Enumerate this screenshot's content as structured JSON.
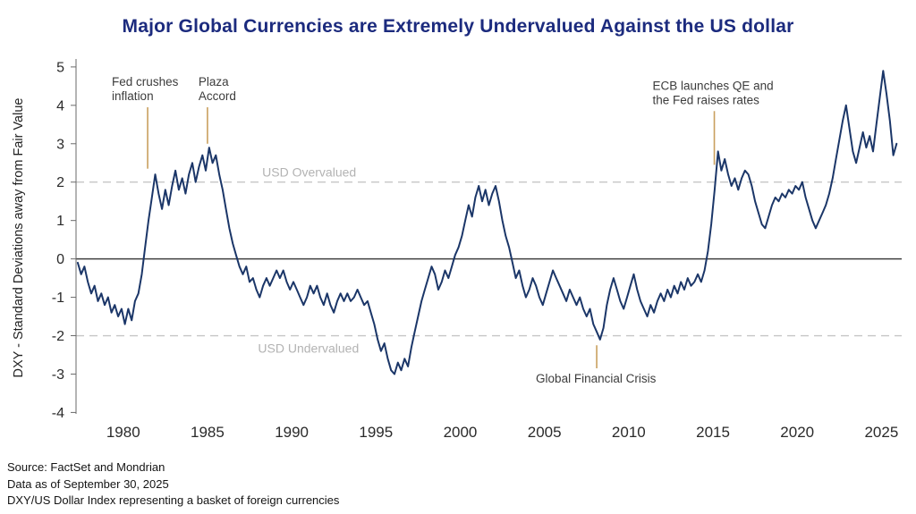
{
  "footer": {
    "lines": [
      "Source: FactSet and Mondrian",
      "Data as of September 30, 2025",
      "DXY/US Dollar Index representing a basket of foreign currencies"
    ]
  },
  "chart_data": {
    "type": "line",
    "title": "Major Global Currencies are Extremely Undervalued Against the US dollar",
    "xlabel": "",
    "ylabel": "DXY - Standard Deviations away from Fair Value",
    "x_ticks": [
      1980,
      1985,
      1990,
      1995,
      2000,
      2005,
      2010,
      2015,
      2020,
      2025
    ],
    "y_ticks": [
      5,
      4,
      3,
      2,
      1,
      0,
      -1,
      -2,
      -3,
      -4
    ],
    "x_range": [
      1977.2,
      2026.2
    ],
    "y_range": [
      -4.2,
      5.3
    ],
    "grid": "off",
    "legend": "none",
    "reference_lines": [
      {
        "value": 2,
        "style": "dashed",
        "label": "USD Overvalued"
      },
      {
        "value": 0,
        "style": "solid",
        "label": ""
      },
      {
        "value": -2,
        "style": "dashed",
        "label": "USD Undervalued"
      }
    ],
    "band_labels": [
      {
        "text": "USD Overvalued",
        "x_year": 1988.25,
        "value": 2,
        "position": "above"
      },
      {
        "text": "USD Undervalued",
        "x_year": 1988.0,
        "value": -2,
        "position": "below"
      }
    ],
    "annotations": [
      {
        "id": "fed-crushes-inflation",
        "lines": [
          "Fed crushes",
          "inflation"
        ],
        "x_year": 1981.45,
        "y_from": 3.95,
        "y_to": 2.35,
        "side": "above",
        "label_dx": -40
      },
      {
        "id": "plaza-accord",
        "lines": [
          "Plaza",
          "Accord"
        ],
        "x_year": 1985.0,
        "y_from": 3.95,
        "y_to": 3.0,
        "side": "above",
        "label_dx": -10
      },
      {
        "id": "ecb-qe-fed-hikes",
        "lines": [
          "ECB launches QE and",
          "the Fed raises rates"
        ],
        "x_year": 2015.08,
        "y_from": 3.85,
        "y_to": 2.45,
        "side": "above",
        "label_dx": -69
      },
      {
        "id": "global-financial-crisis",
        "lines": [
          "Global Financial Crisis"
        ],
        "x_year": 2008.1,
        "y_from": -2.25,
        "y_to": -2.85,
        "side": "below",
        "label_dx": -68
      }
    ],
    "colors": {
      "line": "#1b3668",
      "title": "#1c2b7e",
      "annotation_line": "#c99f5e",
      "annotation_text": "#3c3c3c",
      "dashed": "#c6c6c6",
      "gray_label": "#b3b3b3",
      "tick_text": "#2a2a2a",
      "zero_line": "#3f3f3f",
      "axis": "#6a6a6a"
    },
    "series": [
      {
        "name": "DXY standard deviations from fair value",
        "points": [
          [
            1977.3,
            -0.1
          ],
          [
            1977.5,
            -0.4
          ],
          [
            1977.7,
            -0.2
          ],
          [
            1977.9,
            -0.6
          ],
          [
            1978.1,
            -0.9
          ],
          [
            1978.3,
            -0.7
          ],
          [
            1978.5,
            -1.1
          ],
          [
            1978.7,
            -0.9
          ],
          [
            1978.9,
            -1.2
          ],
          [
            1979.1,
            -1.0
          ],
          [
            1979.3,
            -1.4
          ],
          [
            1979.5,
            -1.2
          ],
          [
            1979.7,
            -1.5
          ],
          [
            1979.9,
            -1.3
          ],
          [
            1980.1,
            -1.7
          ],
          [
            1980.3,
            -1.3
          ],
          [
            1980.5,
            -1.6
          ],
          [
            1980.7,
            -1.1
          ],
          [
            1980.9,
            -0.9
          ],
          [
            1981.1,
            -0.4
          ],
          [
            1981.3,
            0.3
          ],
          [
            1981.5,
            1.0
          ],
          [
            1981.7,
            1.6
          ],
          [
            1981.9,
            2.2
          ],
          [
            1982.1,
            1.7
          ],
          [
            1982.3,
            1.3
          ],
          [
            1982.5,
            1.8
          ],
          [
            1982.7,
            1.4
          ],
          [
            1982.9,
            1.9
          ],
          [
            1983.1,
            2.3
          ],
          [
            1983.3,
            1.8
          ],
          [
            1983.5,
            2.1
          ],
          [
            1983.7,
            1.7
          ],
          [
            1983.9,
            2.2
          ],
          [
            1984.1,
            2.5
          ],
          [
            1984.3,
            2.0
          ],
          [
            1984.5,
            2.4
          ],
          [
            1984.7,
            2.7
          ],
          [
            1984.9,
            2.3
          ],
          [
            1985.1,
            2.9
          ],
          [
            1985.3,
            2.5
          ],
          [
            1985.5,
            2.7
          ],
          [
            1985.7,
            2.2
          ],
          [
            1985.9,
            1.8
          ],
          [
            1986.1,
            1.3
          ],
          [
            1986.3,
            0.8
          ],
          [
            1986.5,
            0.4
          ],
          [
            1986.7,
            0.1
          ],
          [
            1986.9,
            -0.2
          ],
          [
            1987.1,
            -0.4
          ],
          [
            1987.3,
            -0.2
          ],
          [
            1987.5,
            -0.6
          ],
          [
            1987.7,
            -0.5
          ],
          [
            1987.9,
            -0.8
          ],
          [
            1988.1,
            -1.0
          ],
          [
            1988.3,
            -0.7
          ],
          [
            1988.5,
            -0.5
          ],
          [
            1988.7,
            -0.7
          ],
          [
            1988.9,
            -0.5
          ],
          [
            1989.1,
            -0.3
          ],
          [
            1989.3,
            -0.5
          ],
          [
            1989.5,
            -0.3
          ],
          [
            1989.7,
            -0.6
          ],
          [
            1989.9,
            -0.8
          ],
          [
            1990.1,
            -0.6
          ],
          [
            1990.3,
            -0.8
          ],
          [
            1990.5,
            -1.0
          ],
          [
            1990.7,
            -1.2
          ],
          [
            1990.9,
            -1.0
          ],
          [
            1991.1,
            -0.7
          ],
          [
            1991.3,
            -0.9
          ],
          [
            1991.5,
            -0.7
          ],
          [
            1991.7,
            -1.0
          ],
          [
            1991.9,
            -1.2
          ],
          [
            1992.1,
            -0.9
          ],
          [
            1992.3,
            -1.2
          ],
          [
            1992.5,
            -1.4
          ],
          [
            1992.7,
            -1.1
          ],
          [
            1992.9,
            -0.9
          ],
          [
            1993.1,
            -1.1
          ],
          [
            1993.3,
            -0.9
          ],
          [
            1993.5,
            -1.1
          ],
          [
            1993.7,
            -1.0
          ],
          [
            1993.9,
            -0.8
          ],
          [
            1994.1,
            -1.0
          ],
          [
            1994.3,
            -1.2
          ],
          [
            1994.5,
            -1.1
          ],
          [
            1994.7,
            -1.4
          ],
          [
            1994.9,
            -1.7
          ],
          [
            1995.1,
            -2.1
          ],
          [
            1995.3,
            -2.4
          ],
          [
            1995.5,
            -2.2
          ],
          [
            1995.7,
            -2.6
          ],
          [
            1995.9,
            -2.9
          ],
          [
            1996.1,
            -3.0
          ],
          [
            1996.3,
            -2.7
          ],
          [
            1996.5,
            -2.9
          ],
          [
            1996.7,
            -2.6
          ],
          [
            1996.9,
            -2.8
          ],
          [
            1997.1,
            -2.3
          ],
          [
            1997.3,
            -1.9
          ],
          [
            1997.5,
            -1.5
          ],
          [
            1997.7,
            -1.1
          ],
          [
            1997.9,
            -0.8
          ],
          [
            1998.1,
            -0.5
          ],
          [
            1998.3,
            -0.2
          ],
          [
            1998.5,
            -0.4
          ],
          [
            1998.7,
            -0.8
          ],
          [
            1998.9,
            -0.6
          ],
          [
            1999.1,
            -0.3
          ],
          [
            1999.3,
            -0.5
          ],
          [
            1999.5,
            -0.2
          ],
          [
            1999.7,
            0.1
          ],
          [
            1999.9,
            0.3
          ],
          [
            2000.1,
            0.6
          ],
          [
            2000.3,
            1.0
          ],
          [
            2000.5,
            1.4
          ],
          [
            2000.7,
            1.1
          ],
          [
            2000.9,
            1.6
          ],
          [
            2001.1,
            1.9
          ],
          [
            2001.3,
            1.5
          ],
          [
            2001.5,
            1.8
          ],
          [
            2001.7,
            1.4
          ],
          [
            2001.9,
            1.7
          ],
          [
            2002.1,
            1.9
          ],
          [
            2002.3,
            1.5
          ],
          [
            2002.5,
            1.0
          ],
          [
            2002.7,
            0.6
          ],
          [
            2002.9,
            0.3
          ],
          [
            2003.1,
            -0.1
          ],
          [
            2003.3,
            -0.5
          ],
          [
            2003.5,
            -0.3
          ],
          [
            2003.7,
            -0.7
          ],
          [
            2003.9,
            -1.0
          ],
          [
            2004.1,
            -0.8
          ],
          [
            2004.3,
            -0.5
          ],
          [
            2004.5,
            -0.7
          ],
          [
            2004.7,
            -1.0
          ],
          [
            2004.9,
            -1.2
          ],
          [
            2005.1,
            -0.9
          ],
          [
            2005.3,
            -0.6
          ],
          [
            2005.5,
            -0.3
          ],
          [
            2005.7,
            -0.5
          ],
          [
            2005.9,
            -0.7
          ],
          [
            2006.1,
            -0.9
          ],
          [
            2006.3,
            -1.1
          ],
          [
            2006.5,
            -0.8
          ],
          [
            2006.7,
            -1.0
          ],
          [
            2006.9,
            -1.2
          ],
          [
            2007.1,
            -1.0
          ],
          [
            2007.3,
            -1.3
          ],
          [
            2007.5,
            -1.5
          ],
          [
            2007.7,
            -1.3
          ],
          [
            2007.9,
            -1.7
          ],
          [
            2008.1,
            -1.9
          ],
          [
            2008.3,
            -2.1
          ],
          [
            2008.5,
            -1.8
          ],
          [
            2008.7,
            -1.2
          ],
          [
            2008.9,
            -0.8
          ],
          [
            2009.1,
            -0.5
          ],
          [
            2009.3,
            -0.8
          ],
          [
            2009.5,
            -1.1
          ],
          [
            2009.7,
            -1.3
          ],
          [
            2009.9,
            -1.0
          ],
          [
            2010.1,
            -0.7
          ],
          [
            2010.3,
            -0.4
          ],
          [
            2010.5,
            -0.8
          ],
          [
            2010.7,
            -1.1
          ],
          [
            2010.9,
            -1.3
          ],
          [
            2011.1,
            -1.5
          ],
          [
            2011.3,
            -1.2
          ],
          [
            2011.5,
            -1.4
          ],
          [
            2011.7,
            -1.1
          ],
          [
            2011.9,
            -0.9
          ],
          [
            2012.1,
            -1.1
          ],
          [
            2012.3,
            -0.8
          ],
          [
            2012.5,
            -1.0
          ],
          [
            2012.7,
            -0.7
          ],
          [
            2012.9,
            -0.9
          ],
          [
            2013.1,
            -0.6
          ],
          [
            2013.3,
            -0.8
          ],
          [
            2013.5,
            -0.5
          ],
          [
            2013.7,
            -0.7
          ],
          [
            2013.9,
            -0.6
          ],
          [
            2014.1,
            -0.4
          ],
          [
            2014.3,
            -0.6
          ],
          [
            2014.5,
            -0.3
          ],
          [
            2014.7,
            0.2
          ],
          [
            2014.9,
            0.9
          ],
          [
            2015.1,
            1.8
          ],
          [
            2015.3,
            2.8
          ],
          [
            2015.5,
            2.3
          ],
          [
            2015.7,
            2.6
          ],
          [
            2015.9,
            2.2
          ],
          [
            2016.1,
            1.9
          ],
          [
            2016.3,
            2.1
          ],
          [
            2016.5,
            1.8
          ],
          [
            2016.7,
            2.1
          ],
          [
            2016.9,
            2.3
          ],
          [
            2017.1,
            2.2
          ],
          [
            2017.3,
            1.9
          ],
          [
            2017.5,
            1.5
          ],
          [
            2017.7,
            1.2
          ],
          [
            2017.9,
            0.9
          ],
          [
            2018.1,
            0.8
          ],
          [
            2018.3,
            1.1
          ],
          [
            2018.5,
            1.4
          ],
          [
            2018.7,
            1.6
          ],
          [
            2018.9,
            1.5
          ],
          [
            2019.1,
            1.7
          ],
          [
            2019.3,
            1.6
          ],
          [
            2019.5,
            1.8
          ],
          [
            2019.7,
            1.7
          ],
          [
            2019.9,
            1.9
          ],
          [
            2020.1,
            1.8
          ],
          [
            2020.3,
            2.0
          ],
          [
            2020.5,
            1.6
          ],
          [
            2020.7,
            1.3
          ],
          [
            2020.9,
            1.0
          ],
          [
            2021.1,
            0.8
          ],
          [
            2021.3,
            1.0
          ],
          [
            2021.5,
            1.2
          ],
          [
            2021.7,
            1.4
          ],
          [
            2021.9,
            1.7
          ],
          [
            2022.1,
            2.1
          ],
          [
            2022.3,
            2.6
          ],
          [
            2022.5,
            3.1
          ],
          [
            2022.7,
            3.6
          ],
          [
            2022.9,
            4.0
          ],
          [
            2023.1,
            3.4
          ],
          [
            2023.3,
            2.8
          ],
          [
            2023.5,
            2.5
          ],
          [
            2023.7,
            2.9
          ],
          [
            2023.9,
            3.3
          ],
          [
            2024.1,
            2.9
          ],
          [
            2024.3,
            3.2
          ],
          [
            2024.5,
            2.8
          ],
          [
            2024.7,
            3.5
          ],
          [
            2024.9,
            4.2
          ],
          [
            2025.1,
            4.9
          ],
          [
            2025.3,
            4.3
          ],
          [
            2025.5,
            3.6
          ],
          [
            2025.7,
            2.7
          ],
          [
            2025.9,
            3.0
          ]
        ]
      }
    ]
  }
}
